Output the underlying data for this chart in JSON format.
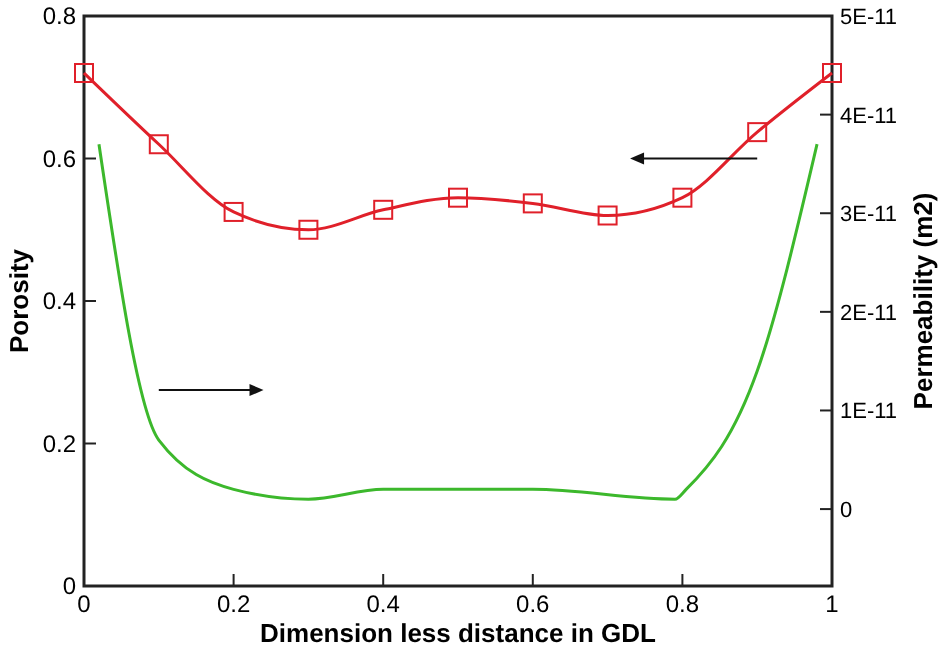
{
  "chart_data": {
    "type": "line",
    "xlabel": "Dimension less distance in GDL",
    "ylabel": "Porosity",
    "y2label": "Permeability (m2)",
    "xlim": [
      0,
      1
    ],
    "xticks": [
      0,
      0.2,
      0.4,
      0.6,
      0.8,
      1
    ],
    "ylim": [
      0,
      0.8
    ],
    "yticks": [
      0,
      0.2,
      0.4,
      0.6,
      0.8
    ],
    "y2lim": [
      -7.8e-12,
      5e-11
    ],
    "y2ticks": [
      0,
      {
        "value": 1e-11,
        "label": "1E-11"
      },
      {
        "value": 2e-11,
        "label": "2E-11"
      },
      {
        "value": 3e-11,
        "label": "3E-11"
      },
      {
        "value": 4e-11,
        "label": "4E-11"
      },
      {
        "value": 5e-11,
        "label": "5E-11"
      }
    ],
    "grid": false,
    "line_style": "solid",
    "series": [
      {
        "color": "#e0202a",
        "marker": "square",
        "x": [
          0,
          0.1,
          0.2,
          0.3,
          0.4,
          0.5,
          0.6,
          0.7,
          0.8,
          0.9,
          1
        ],
        "values": [
          0.72,
          0.62,
          0.525,
          0.5,
          0.528,
          0.545,
          0.537,
          0.52,
          0.545,
          0.637,
          0.72
        ]
      },
      {
        "color": "#3cb82c",
        "marker": "none",
        "axis": "y2",
        "x": [
          0.02,
          0.1,
          0.2,
          0.3,
          0.4,
          0.6,
          0.79,
          0.805,
          0.9,
          0.98
        ],
        "values": [
          3.7e-11,
          7e-12,
          2e-12,
          1e-12,
          2e-12,
          2e-12,
          1e-12,
          2e-12,
          1.4e-11,
          3.7e-11
        ]
      }
    ]
  }
}
